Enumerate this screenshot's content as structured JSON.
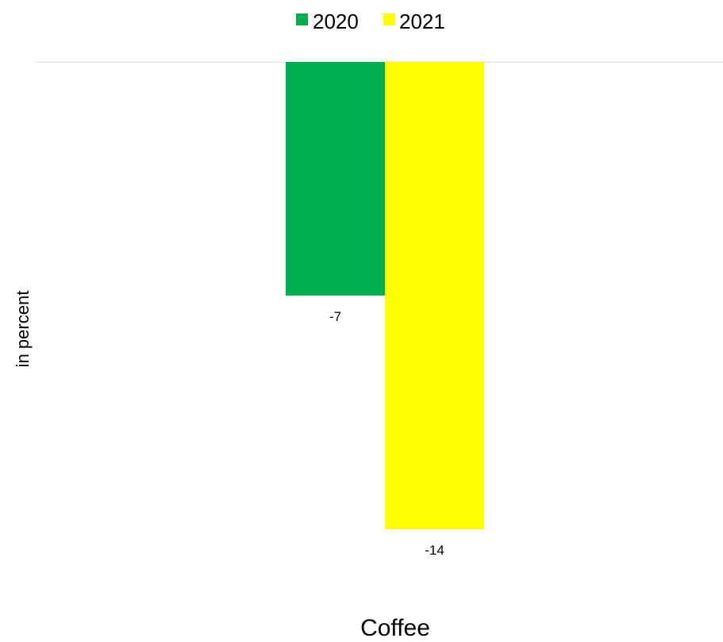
{
  "chart_data": {
    "type": "bar",
    "categories": [
      "Coffee"
    ],
    "series": [
      {
        "name": "2020",
        "values": [
          -7
        ],
        "color": "#00b050"
      },
      {
        "name": "2021",
        "values": [
          -14
        ],
        "color": "#ffff00"
      }
    ],
    "title": "",
    "xlabel": "",
    "ylabel": "in percent",
    "ylim": [
      -14,
      0
    ],
    "data_labels": [
      "-7",
      "-14"
    ],
    "grid": false,
    "legend_position": "top"
  }
}
